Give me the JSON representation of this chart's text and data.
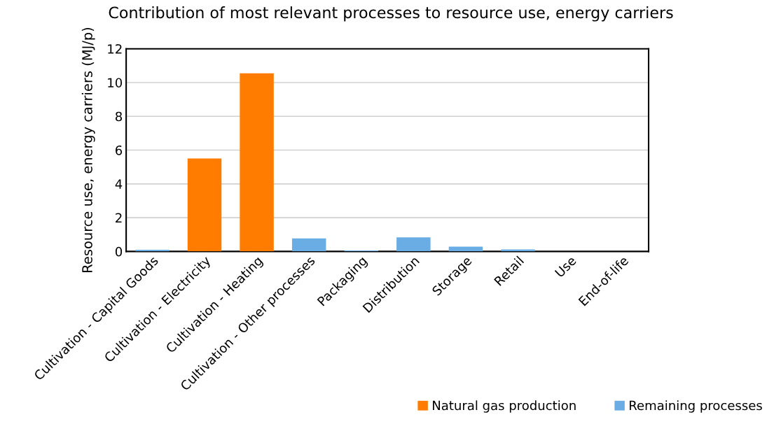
{
  "chart_data": {
    "type": "bar",
    "title": "Contribution of most relevant processes to resource use, energy carriers",
    "ylabel": "Resource use, energy carriers (MJ/p)",
    "categories": [
      "Cultivation - Capital Goods",
      "Cultivation - Electricity",
      "Cultivation - Heating",
      "Cultivation - Other processes",
      "Packaging",
      "Distribution",
      "Storage",
      "Retail",
      "Use",
      "End-of-life"
    ],
    "series": [
      {
        "name": "Natural gas production",
        "color": "#ff7c00",
        "values": [
          null,
          5.5,
          10.55,
          null,
          null,
          null,
          null,
          null,
          null,
          null
        ]
      },
      {
        "name": "Remaining processes",
        "color": "#69ade4",
        "values": [
          0.1,
          null,
          null,
          0.77,
          0.06,
          0.83,
          0.28,
          0.12,
          null,
          null
        ]
      }
    ],
    "ylim": [
      0,
      12
    ],
    "yticks": [
      0,
      2,
      4,
      6,
      8,
      10,
      12
    ],
    "grid": "y",
    "legend": "bottom right"
  }
}
